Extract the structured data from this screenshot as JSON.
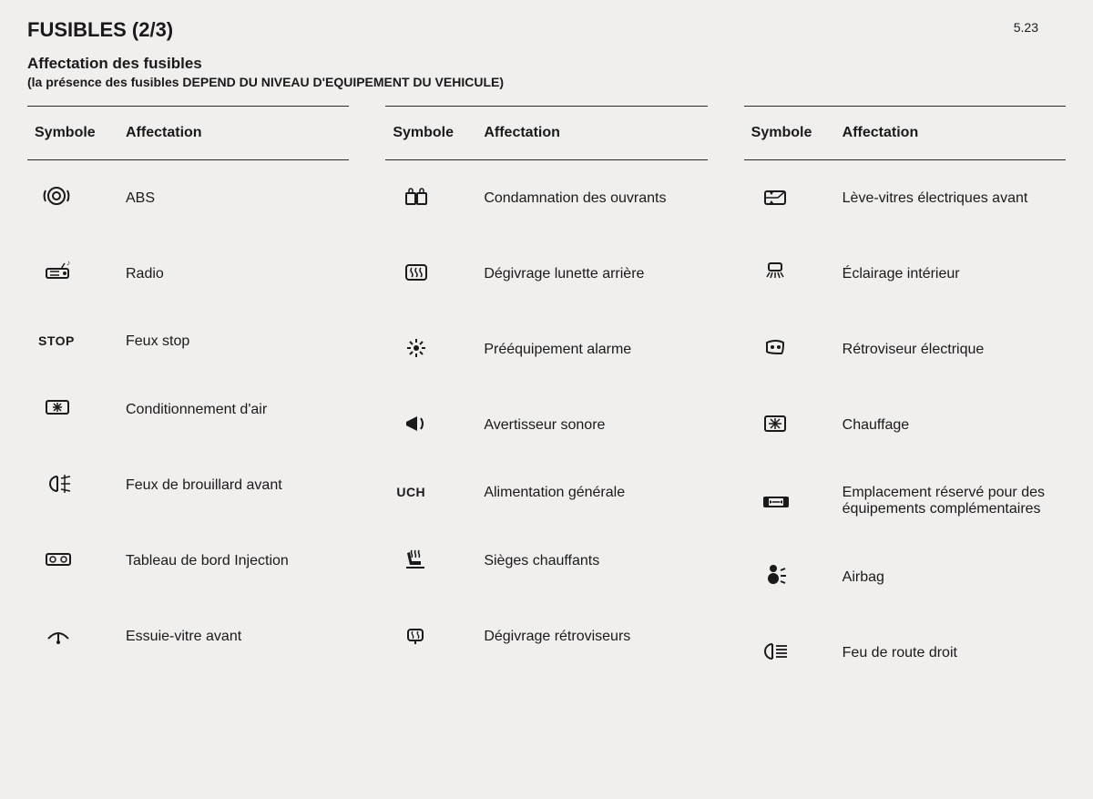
{
  "page_number": "5.23",
  "title": "FUSIBLES (2/3)",
  "subtitle": "Affectation des fusibles",
  "subnote": "(la présence des fusibles DEPEND DU NIVEAU D'EQUIPEMENT DU VEHICULE)",
  "header_symbol": "Symbole",
  "header_assign": "Affectation",
  "columns": [
    {
      "rows": [
        {
          "icon": "abs",
          "label": "ABS"
        },
        {
          "icon": "radio",
          "label": "Radio"
        },
        {
          "icon": "stop",
          "label": "Feux stop"
        },
        {
          "icon": "ac",
          "label": "Conditionnement d'air"
        },
        {
          "icon": "fog",
          "label": "Feux de brouillard avant"
        },
        {
          "icon": "dash",
          "label": "Tableau de bord Injection"
        },
        {
          "icon": "wiper-front",
          "label": "Essuie-vitre avant"
        }
      ]
    },
    {
      "rows": [
        {
          "icon": "lock",
          "label": "Condamnation des ouvrants"
        },
        {
          "icon": "rear-defrost",
          "label": "Dégivrage lunette arrière"
        },
        {
          "icon": "alarm",
          "label": "Prééquipement alarme"
        },
        {
          "icon": "horn",
          "label": "Avertisseur sonore"
        },
        {
          "icon": "uch",
          "label": "Alimentation générale"
        },
        {
          "icon": "heated-seat",
          "label": "Sièges chauffants"
        },
        {
          "icon": "mirror-defrost",
          "label": "Dégivrage rétroviseurs"
        }
      ]
    },
    {
      "rows": [
        {
          "icon": "window",
          "label": "Lève-vitres électriques avant"
        },
        {
          "icon": "interior-light",
          "label": "Éclairage intérieur"
        },
        {
          "icon": "mirror-elec",
          "label": "Rétroviseur électrique"
        },
        {
          "icon": "heating",
          "label": "Chauffage"
        },
        {
          "icon": "reserved",
          "label": "Emplacement réservé pour des équipements complémentaires"
        },
        {
          "icon": "airbag",
          "label": "Airbag"
        },
        {
          "icon": "high-beam",
          "label": "Feu de route droit"
        }
      ]
    }
  ]
}
